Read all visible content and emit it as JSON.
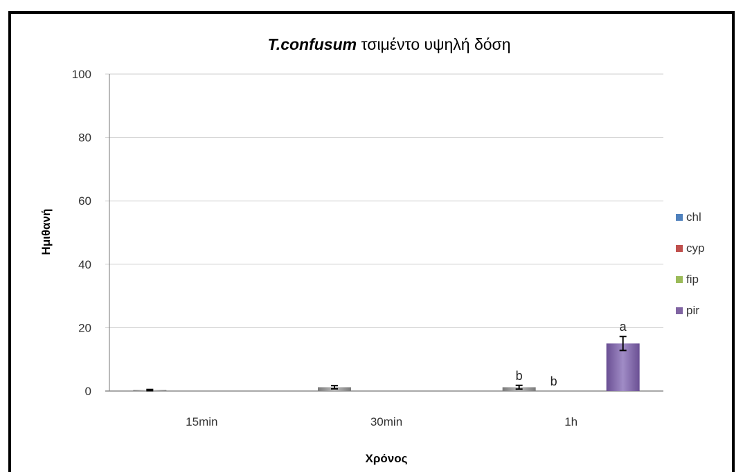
{
  "chart_data": {
    "type": "bar",
    "title_italic": "T.confusum",
    "title_rest": " τσιμέντο υψηλή δόση",
    "xlabel": "Χρόνος",
    "ylabel": "Ημιθανή",
    "categories": [
      "15min",
      "30min",
      "1h"
    ],
    "ylim": [
      0,
      100
    ],
    "yticks": [
      0,
      20,
      40,
      60,
      80,
      100
    ],
    "grid": true,
    "legend_position": "right",
    "series": [
      {
        "name": "chl",
        "color": "#4f81bd",
        "values": [
          0.3,
          1.2,
          1.2
        ],
        "errors": [
          0.2,
          0.5,
          0.6
        ],
        "labels": [
          "",
          "",
          "b"
        ]
      },
      {
        "name": "cyp",
        "color": "#c0504d",
        "values": [
          0,
          0,
          0
        ],
        "errors": [
          0,
          0,
          0
        ],
        "labels": [
          "",
          "",
          "b"
        ]
      },
      {
        "name": "fip",
        "color": "#9bbb59",
        "values": [
          0,
          0,
          0
        ],
        "errors": [
          0,
          0,
          0
        ],
        "labels": [
          "",
          "",
          ""
        ]
      },
      {
        "name": "pir",
        "color": "#8064a2",
        "values": [
          0,
          0,
          15
        ],
        "errors": [
          0,
          0,
          2.2
        ],
        "labels": [
          "",
          "",
          "a"
        ]
      }
    ]
  }
}
